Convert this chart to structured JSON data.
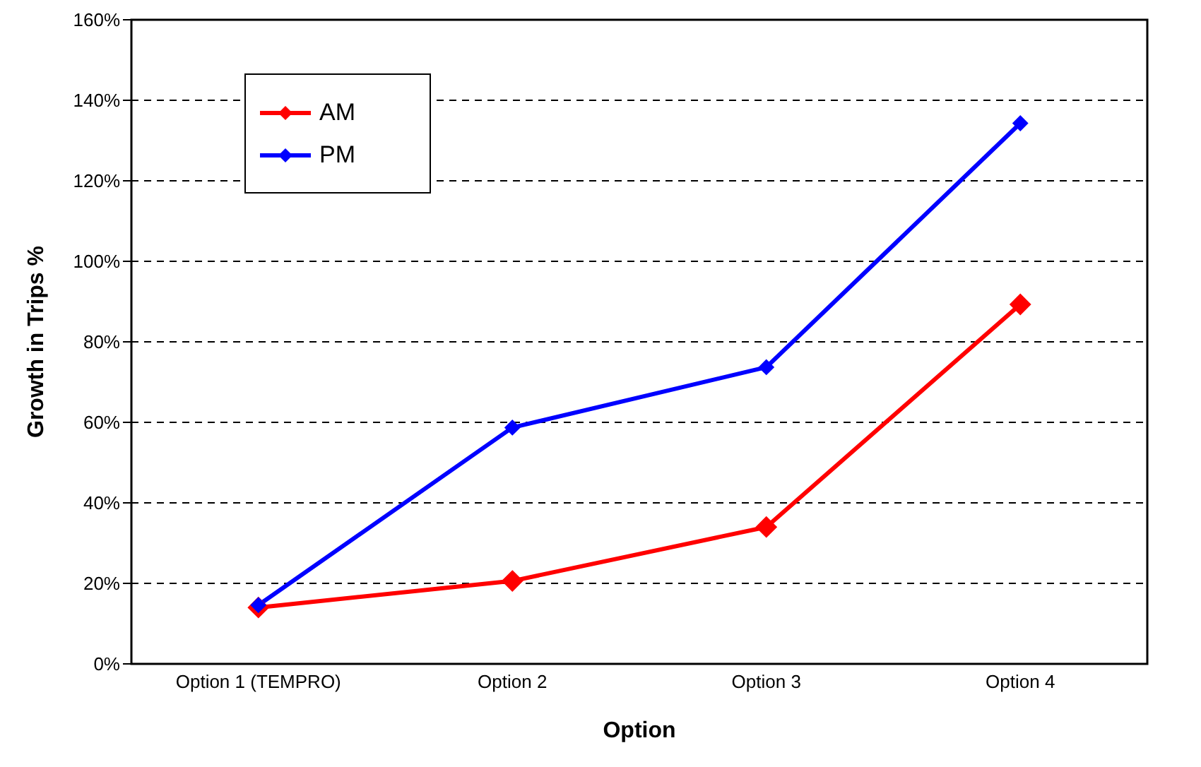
{
  "chart_data": {
    "type": "line",
    "xlabel": "Option",
    "ylabel": "Growth in Trips %",
    "categories": [
      "Option 1 (TEMPRO)",
      "Option 2",
      "Option 3",
      "Option 4"
    ],
    "series": [
      {
        "name": "AM",
        "color": "#ff0000",
        "values": [
          14,
          20.6,
          34,
          89.3
        ]
      },
      {
        "name": "PM",
        "color": "#0000ff",
        "values": [
          14.6,
          58.7,
          73.7,
          134.3
        ]
      }
    ],
    "ylim": [
      0,
      160
    ],
    "yticks": [
      {
        "value": 0,
        "label": "0%"
      },
      {
        "value": 20,
        "label": "20%"
      },
      {
        "value": 40,
        "label": "40%"
      },
      {
        "value": 60,
        "label": "60%"
      },
      {
        "value": 80,
        "label": "80%"
      },
      {
        "value": 100,
        "label": "100%"
      },
      {
        "value": 120,
        "label": "120%"
      },
      {
        "value": 140,
        "label": "140%"
      },
      {
        "value": 160,
        "label": "160%"
      }
    ],
    "grid": "y",
    "legend": "top left",
    "marker": "diamond",
    "line_style": "solid"
  }
}
